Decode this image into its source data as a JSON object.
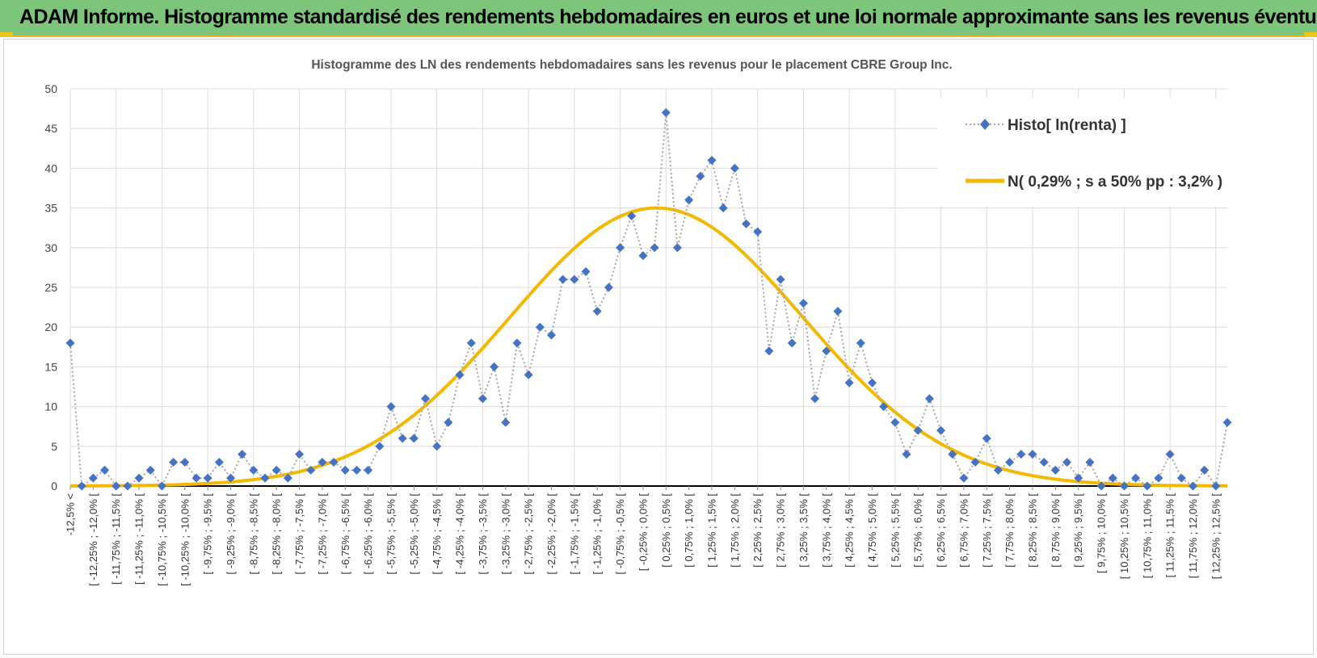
{
  "header": {
    "title": "ADAM Informe. Histogramme standardisé des rendements hebdomadaires en euros et une loi normale approximante sans les revenus éventuels"
  },
  "colors": {
    "header_bg": "#7cc57a",
    "accent": "#f0c419",
    "series_marker": "#4472c4",
    "series_line": "#a6a6a6",
    "normal_curve": "#f5b800"
  },
  "chart_data": {
    "type": "line",
    "title": "Histogramme des LN des rendements hebdomadaires sans les revenus pour le placement CBRE Group Inc.",
    "xlabel": "",
    "ylabel": "",
    "ylim": [
      0,
      50
    ],
    "yticks": [
      0,
      5,
      10,
      15,
      20,
      25,
      30,
      35,
      40,
      45,
      50
    ],
    "grid": true,
    "legend_position": "top-right",
    "labeled_categories": [
      "-12,5% <",
      "[ -12,25% ; -12,0% [",
      "[ -11,75% ; -11,5% [",
      "[ -11,25% ; -11,0% [",
      "[ -10,75% ; -10,5% [",
      "[ -10,25% ; -10,0% [",
      "[ -9,75% ; -9,5% [",
      "[ -9,25% ; -9,0% [",
      "[ -8,75% ; -8,5% [",
      "[ -8,25% ; -8,0% [",
      "[ -7,75% ; -7,5% [",
      "[ -7,25% ; -7,0% [",
      "[ -6,75% ; -6,5% [",
      "[ -6,25% ; -6,0% [",
      "[ -5,75% ; -5,5% [",
      "[ -5,25% ; -5,0% [",
      "[ -4,75% ; -4,5% [",
      "[ -4,25% ; -4,0% [",
      "[ -3,75% ; -3,5% [",
      "[ -3,25% ; -3,0% [",
      "[ -2,75% ; -2,5% [",
      "[ -2,25% ; -2,0% [",
      "[ -1,75% ; -1,5% [",
      "[ -1,25% ; -1,0% [",
      "[ -0,75% ; -0,5% [",
      "[ -0,25% ; 0,0% [",
      "[ 0,25% ; 0,5% [",
      "[ 0,75% ; 1,0% [",
      "[ 1,25% ; 1,5% [",
      "[ 1,75% ; 2,0% [",
      "[ 2,25% ; 2,5% [",
      "[ 2,75% ; 3,0% [",
      "[ 3,25% ; 3,5% [",
      "[ 3,75% ; 4,0% [",
      "[ 4,25% ; 4,5% [",
      "[ 4,75% ; 5,0% [",
      "[ 5,25% ; 5,5% [",
      "[ 5,75% ; 6,0% [",
      "[ 6,25% ; 6,5% [",
      "[ 6,75% ; 7,0% [",
      "[ 7,25% ; 7,5% [",
      "[ 7,75% ; 8,0% [",
      "[ 8,25% ; 8,5% [",
      "[ 8,75% ; 9,0% [",
      "[ 9,25% ; 9,5% [",
      "[ 9,75% ; 10,0% [",
      "[ 10,25% ; 10,5% [",
      "[ 10,75% ; 11,0% [",
      "[ 11,25% ; 11,5% [",
      "[ 11,75% ; 12,0% [",
      "[ 12,25% ; 12,5% ["
    ],
    "series": [
      {
        "name": "Histo[ ln(renta) ]",
        "style": "dotted-line-diamond-markers",
        "values": [
          18,
          0,
          1,
          2,
          0,
          0,
          1,
          2,
          0,
          3,
          3,
          1,
          1,
          3,
          1,
          4,
          2,
          1,
          2,
          1,
          4,
          2,
          3,
          3,
          2,
          2,
          2,
          5,
          10,
          6,
          6,
          11,
          5,
          8,
          14,
          18,
          11,
          15,
          8,
          18,
          14,
          20,
          19,
          26,
          26,
          27,
          22,
          25,
          30,
          34,
          29,
          30,
          47,
          30,
          36,
          39,
          41,
          35,
          40,
          33,
          32,
          17,
          26,
          18,
          23,
          11,
          17,
          22,
          13,
          18,
          13,
          10,
          8,
          4,
          7,
          11,
          7,
          4,
          1,
          3,
          6,
          2,
          3,
          4,
          4,
          3,
          2,
          3,
          1,
          3,
          0,
          1,
          0,
          1,
          0,
          1,
          4,
          1,
          0,
          2,
          0,
          8
        ]
      },
      {
        "name": "N( 0,29% ; s a 50% pp : 3,2% )",
        "style": "smooth-line",
        "mean": 0.29,
        "sd": 3.2,
        "peak": 35
      }
    ]
  }
}
